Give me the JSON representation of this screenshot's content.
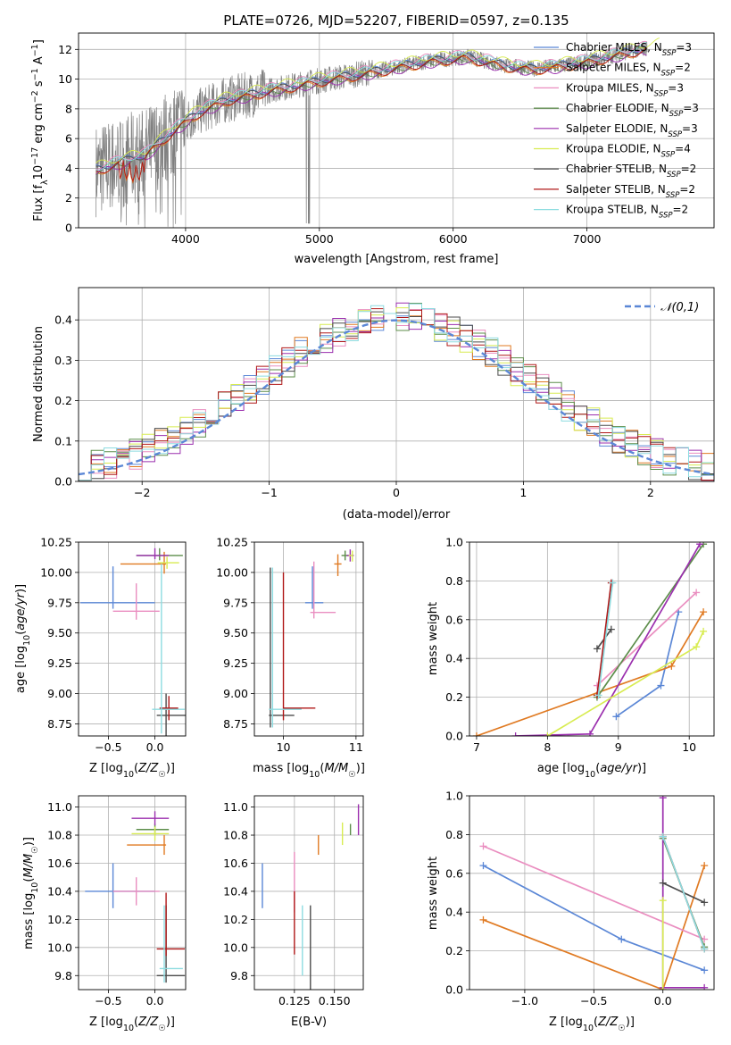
{
  "title": "PLATE=0726, MJD=52207, FIBERID=0597, z=0.135",
  "colors": {
    "model_1": "#5b87d6",
    "model_2": "#e07a22",
    "model_3": "#ea8ec0",
    "model_4": "#5c8d4a",
    "model_5": "#9b2fae",
    "model_6": "#d8ec52",
    "model_7": "#4b4b4b",
    "model_8": "#b01818",
    "model_9": "#8ddce0",
    "data": "#808080",
    "normal": "#5b87d6"
  },
  "chart_data": [
    {
      "type": "line",
      "id": "spectrum",
      "xlabel": "wavelength [Angstrom, rest frame]",
      "ylabel": "Flux [f_λ10^-17 erg cm^-2 s^-1 A^-1]",
      "xlim": [
        3200,
        7950
      ],
      "ylim": [
        0,
        13.1
      ],
      "xticks": [
        4000,
        5000,
        6000,
        7000
      ],
      "yticks": [
        0,
        2,
        4,
        6,
        8,
        10,
        12
      ],
      "grid": true,
      "legend": "top-right",
      "continuum": {
        "x": [
          3330,
          3500,
          3700,
          3900,
          4100,
          4300,
          4600,
          5000,
          5400,
          5800,
          6100,
          6400,
          6600,
          6800,
          7000,
          7200,
          7400,
          7600
        ],
        "y": [
          3.9,
          4.4,
          4.9,
          6.5,
          7.8,
          8.6,
          9.2,
          9.9,
          10.5,
          11.2,
          11.5,
          10.9,
          10.7,
          10.9,
          11.2,
          11.6,
          12.0,
          12.3
        ]
      },
      "series": [
        {
          "name": "Chabrier MILES, N_SSP=3",
          "offset": 0.1
        },
        {
          "name": "Salpeter MILES, N_SSP=2",
          "offset": -0.2
        },
        {
          "name": "Kroupa MILES, N_SSP=3",
          "offset": 0.25
        },
        {
          "name": "Chabrier ELODIE, N_SSP=3",
          "offset": -0.1
        },
        {
          "name": "Salpeter ELODIE, N_SSP=3",
          "offset": -0.25
        },
        {
          "name": "Kroupa ELODIE, N_SSP=4",
          "offset": 0.3
        },
        {
          "name": "Chabrier STELIB, N_SSP=2",
          "offset": 0.0
        },
        {
          "name": "Salpeter STELIB, N_SSP=2",
          "offset": -0.15
        },
        {
          "name": "Kroupa STELIB, N_SSP=2",
          "offset": 0.15
        }
      ]
    },
    {
      "type": "area",
      "id": "residuals",
      "xlabel": "(data-model)/error",
      "ylabel": "Normed distribution",
      "xlim": [
        -2.5,
        2.5
      ],
      "ylim": [
        0,
        0.48
      ],
      "xticks": [
        -2,
        -1,
        0,
        1,
        2
      ],
      "yticks": [
        0.0,
        0.1,
        0.2,
        0.3,
        0.4
      ],
      "grid": true,
      "legend": "top-right",
      "reference": {
        "name": "𝒩(0,1)",
        "mean": 0,
        "sigma": 1
      },
      "bins": {
        "start": -2.5,
        "width": 0.1,
        "count": 50
      }
    },
    {
      "type": "scatter",
      "id": "age_vs_Z",
      "xlabel": "Z [log10(Z/Z☉)]",
      "ylabel": "age [log10(age/yr)]",
      "xlim": [
        -0.82,
        0.33
      ],
      "ylim": [
        8.65,
        10.25
      ],
      "xticks": [
        -0.5,
        0.0
      ],
      "yticks": [
        8.75,
        9.0,
        9.25,
        9.5,
        9.75,
        10.0,
        10.25
      ],
      "grid": true,
      "points": [
        {
          "series": 1,
          "x": -0.45,
          "y": 9.75,
          "xerr": [
            0.35,
            0.45
          ],
          "yerr": [
            0.05,
            0.3
          ]
        },
        {
          "series": 2,
          "x": 0.1,
          "y": 10.07,
          "xerr": [
            0.47,
            0.02
          ],
          "yerr": [
            0.08,
            0.1
          ]
        },
        {
          "series": 3,
          "x": -0.2,
          "y": 9.68,
          "xerr": [
            0.25,
            0.25
          ],
          "yerr": [
            0.07,
            0.23
          ]
        },
        {
          "series": 4,
          "x": 0.05,
          "y": 10.14,
          "xerr": [
            0.25,
            0.25
          ],
          "yerr": [
            0.04,
            0.06
          ]
        },
        {
          "series": 5,
          "x": 0.0,
          "y": 10.14,
          "xerr": [
            0.2,
            0.15
          ],
          "yerr": [
            0.03,
            0.06
          ]
        },
        {
          "series": 6,
          "x": 0.13,
          "y": 10.08,
          "xerr": [
            0.1,
            0.13
          ],
          "yerr": [
            0.05,
            0.05
          ]
        },
        {
          "series": 7,
          "x": 0.12,
          "y": 8.82,
          "xerr": [
            0.1,
            0.24
          ],
          "yerr": [
            0.18,
            0.18
          ]
        },
        {
          "series": 8,
          "x": 0.15,
          "y": 8.88,
          "xerr": [
            0.1,
            0.1
          ],
          "yerr": [
            0.1,
            0.1
          ]
        },
        {
          "series": 9,
          "x": 0.07,
          "y": 8.87,
          "xerr": [
            0.1,
            0.25
          ],
          "yerr": [
            0.2,
            1.2
          ]
        }
      ]
    },
    {
      "type": "scatter",
      "id": "age_vs_mass",
      "xlabel": "mass [log10(M/M☉)]",
      "ylabel": "",
      "xlim": [
        9.6,
        11.1
      ],
      "ylim": [
        8.65,
        10.25
      ],
      "xticks": [
        10,
        11
      ],
      "yticks": [
        8.75,
        9.0,
        9.25,
        9.5,
        9.75,
        10.0,
        10.25
      ],
      "grid": true,
      "points": [
        {
          "series": 1,
          "x": 10.4,
          "y": 9.75,
          "xerr": [
            0.1,
            0.15
          ],
          "yerr": [
            0.05,
            0.3
          ]
        },
        {
          "series": 2,
          "x": 10.75,
          "y": 10.07,
          "xerr": [
            0.05,
            0.05
          ],
          "yerr": [
            0.1,
            0.08
          ]
        },
        {
          "series": 3,
          "x": 10.42,
          "y": 9.67,
          "xerr": [
            0.05,
            0.3
          ],
          "yerr": [
            0.05,
            0.42
          ]
        },
        {
          "series": 4,
          "x": 10.85,
          "y": 10.14,
          "xerr": [
            0.05,
            0.05
          ],
          "yerr": [
            0.04,
            0.04
          ]
        },
        {
          "series": 5,
          "x": 10.92,
          "y": 10.14,
          "xerr": [
            0.05,
            0.05
          ],
          "yerr": [
            0.05,
            0.05
          ]
        },
        {
          "series": 6,
          "x": 10.95,
          "y": 10.14,
          "xerr": [
            0.05,
            0.0
          ],
          "yerr": [
            0.05,
            0.04
          ]
        },
        {
          "series": 7,
          "x": 9.82,
          "y": 8.82,
          "xerr": [
            0.02,
            0.33
          ],
          "yerr": [
            0.1,
            1.22
          ]
        },
        {
          "series": 8,
          "x": 10.0,
          "y": 8.88,
          "xerr": [
            0.0,
            0.44
          ],
          "yerr": [
            0.1,
            1.12
          ]
        },
        {
          "series": 9,
          "x": 9.85,
          "y": 8.87,
          "xerr": [
            0.05,
            0.4
          ],
          "yerr": [
            0.15,
            1.17
          ]
        }
      ]
    },
    {
      "type": "line",
      "id": "weight_vs_age",
      "xlabel": "age [log10(age/yr)]",
      "ylabel": "mass weight",
      "xlim": [
        6.9,
        10.35
      ],
      "ylim": [
        0,
        1.0
      ],
      "xticks": [
        7,
        8,
        9,
        10
      ],
      "yticks": [
        0.0,
        0.2,
        0.4,
        0.6,
        0.8,
        1.0
      ],
      "grid": true,
      "series": [
        {
          "series": 1,
          "x": [
            8.97,
            9.6,
            9.85
          ],
          "y": [
            0.1,
            0.26,
            0.64
          ]
        },
        {
          "series": 2,
          "x": [
            7.0,
            9.75,
            10.2
          ],
          "y": [
            0.0,
            0.36,
            0.64
          ]
        },
        {
          "series": 3,
          "x": [
            8.7,
            10.1
          ],
          "y": [
            0.26,
            0.74
          ]
        },
        {
          "series": 4,
          "x": [
            8.7,
            10.2
          ],
          "y": [
            0.2,
            0.99
          ]
        },
        {
          "series": 5,
          "x": [
            7.55,
            8.6,
            10.15
          ],
          "y": [
            0.0,
            0.01,
            0.99
          ]
        },
        {
          "series": 6,
          "x": [
            8.0,
            10.1,
            10.2
          ],
          "y": [
            0.0,
            0.46,
            0.54
          ]
        },
        {
          "series": 7,
          "x": [
            8.7,
            8.9
          ],
          "y": [
            0.45,
            0.55
          ]
        },
        {
          "series": 8,
          "x": [
            8.7,
            8.9
          ],
          "y": [
            0.21,
            0.79
          ]
        },
        {
          "series": 9,
          "x": [
            8.72,
            8.92
          ],
          "y": [
            0.21,
            0.79
          ]
        }
      ]
    },
    {
      "type": "scatter",
      "id": "mass_vs_Z",
      "xlabel": "Z [log10(Z/Z☉)]",
      "ylabel": "mass [log10(M/M☉)]",
      "xlim": [
        -0.82,
        0.33
      ],
      "ylim": [
        9.7,
        11.08
      ],
      "xticks": [
        -0.5,
        0.0
      ],
      "yticks": [
        9.8,
        10.0,
        10.2,
        10.4,
        10.6,
        10.8,
        11.0
      ],
      "grid": true,
      "points": [
        {
          "series": 1,
          "x": -0.45,
          "y": 10.4,
          "xerr": [
            0.3,
            0.45
          ],
          "yerr": [
            0.12,
            0.2
          ]
        },
        {
          "series": 2,
          "x": 0.1,
          "y": 10.73,
          "xerr": [
            0.4,
            0.02
          ],
          "yerr": [
            0.07,
            0.07
          ]
        },
        {
          "series": 3,
          "x": -0.2,
          "y": 10.4,
          "xerr": [
            0.25,
            0.25
          ],
          "yerr": [
            0.1,
            0.1
          ]
        },
        {
          "series": 4,
          "x": 0.0,
          "y": 10.84,
          "xerr": [
            0.2,
            0.15
          ],
          "yerr": [
            0.04,
            0.04
          ]
        },
        {
          "series": 5,
          "x": 0.0,
          "y": 10.92,
          "xerr": [
            0.25,
            0.15
          ],
          "yerr": [
            0.05,
            0.05
          ]
        },
        {
          "series": 6,
          "x": 0.0,
          "y": 10.81,
          "xerr": [
            0.25,
            0.15
          ],
          "yerr": [
            0.05,
            0.05
          ]
        },
        {
          "series": 7,
          "x": 0.12,
          "y": 9.8,
          "xerr": [
            0.1,
            0.2
          ],
          "yerr": [
            0.05,
            0.5
          ]
        },
        {
          "series": 8,
          "x": 0.12,
          "y": 9.99,
          "xerr": [
            0.1,
            0.2
          ],
          "yerr": [
            0.05,
            0.4
          ]
        },
        {
          "series": 9,
          "x": 0.1,
          "y": 9.85,
          "xerr": [
            0.05,
            0.2
          ],
          "yerr": [
            0.1,
            0.45
          ]
        }
      ]
    },
    {
      "type": "scatter",
      "id": "mass_vs_ebv",
      "xlabel": "E(B-V)",
      "ylabel": "",
      "xlim": [
        0.1,
        0.168
      ],
      "ylim": [
        9.7,
        11.08
      ],
      "xticks": [
        0.125,
        0.15
      ],
      "yticks": [
        9.8,
        10.0,
        10.2,
        10.4,
        10.6,
        10.8,
        11.0
      ],
      "grid": true,
      "points": [
        {
          "series": 1,
          "x": 0.105,
          "y": 10.4,
          "yerr": [
            0.12,
            0.2
          ]
        },
        {
          "series": 2,
          "x": 0.14,
          "y": 10.73,
          "yerr": [
            0.07,
            0.07
          ]
        },
        {
          "series": 3,
          "x": 0.125,
          "y": 10.4,
          "yerr": [
            0.15,
            0.28
          ]
        },
        {
          "series": 4,
          "x": 0.16,
          "y": 10.84,
          "yerr": [
            0.04,
            0.04
          ]
        },
        {
          "series": 5,
          "x": 0.165,
          "y": 10.92,
          "yerr": [
            0.12,
            0.1
          ]
        },
        {
          "series": 6,
          "x": 0.155,
          "y": 10.81,
          "yerr": [
            0.08,
            0.08
          ]
        },
        {
          "series": 7,
          "x": 0.135,
          "y": 10.1,
          "yerr": [
            0.45,
            0.2
          ]
        },
        {
          "series": 8,
          "x": 0.125,
          "y": 10.2,
          "yerr": [
            0.25,
            0.2
          ]
        },
        {
          "series": 9,
          "x": 0.13,
          "y": 10.0,
          "yerr": [
            0.2,
            0.3
          ]
        }
      ]
    },
    {
      "type": "line",
      "id": "weight_vs_Z",
      "xlabel": "Z [log10(Z/Z☉)]",
      "ylabel": "mass weight",
      "xlim": [
        -1.4,
        0.37
      ],
      "ylim": [
        0,
        1.0
      ],
      "xticks": [
        -1.0,
        -0.5,
        0.0
      ],
      "yticks": [
        0.0,
        0.2,
        0.4,
        0.6,
        0.8,
        1.0
      ],
      "grid": true,
      "series": [
        {
          "series": 1,
          "x": [
            -1.3,
            -0.3,
            0.3
          ],
          "y": [
            0.64,
            0.26,
            0.1
          ]
        },
        {
          "series": 2,
          "x": [
            -1.3,
            0.0,
            0.3
          ],
          "y": [
            0.36,
            0.0,
            0.64
          ]
        },
        {
          "series": 3,
          "x": [
            -1.3,
            0.3
          ],
          "y": [
            0.74,
            0.26
          ]
        },
        {
          "series": 4,
          "x": [
            0.0,
            0.3
          ],
          "y": [
            0.78,
            0.22
          ]
        },
        {
          "series": 5,
          "x": [
            0.0,
            0.0,
            0.3
          ],
          "y": [
            0.99,
            0.01,
            0.01
          ]
        },
        {
          "series": 6,
          "x": [
            0.0,
            0.0
          ],
          "y": [
            0.0,
            0.46
          ]
        },
        {
          "series": 7,
          "x": [
            0.0,
            0.3
          ],
          "y": [
            0.55,
            0.45
          ]
        },
        {
          "series": 8,
          "x": [
            0.0,
            0.3
          ],
          "y": [
            0.79,
            0.21
          ]
        },
        {
          "series": 9,
          "x": [
            0.0,
            0.3
          ],
          "y": [
            0.79,
            0.21
          ]
        }
      ]
    }
  ]
}
